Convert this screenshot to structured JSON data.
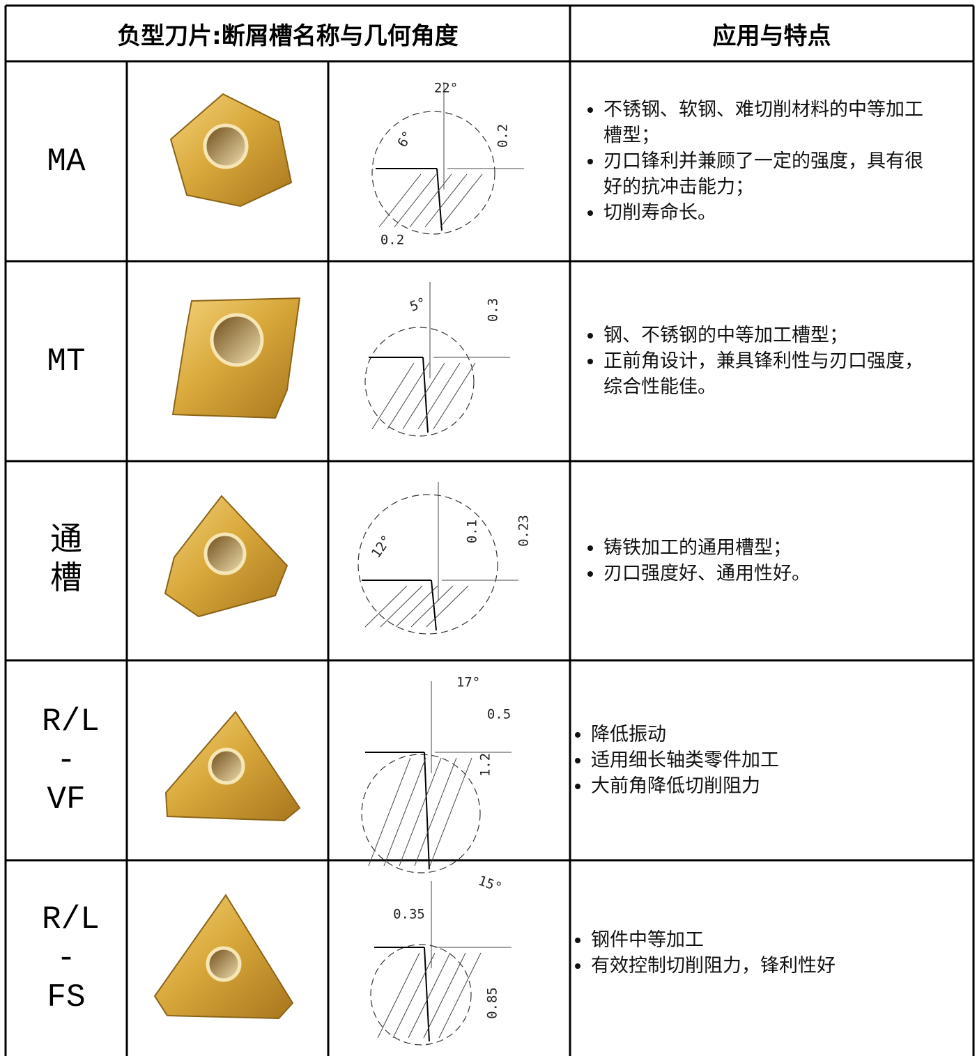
{
  "header": {
    "col1": "负型刀片:断屑槽名称与几何角度",
    "col2": "应用与特点"
  },
  "rows": [
    {
      "name": "MA",
      "drawing_labels": [
        "22°",
        "6°",
        "0.2",
        "0.2"
      ],
      "features": [
        "不锈钢、软钢、难切削材料的中等加工槽型；",
        "刃口锋利并兼顾了一定的强度，具有很好的抗冲击能力；",
        "切削寿命长。"
      ]
    },
    {
      "name": "MT",
      "drawing_labels": [
        "5°",
        "0.3"
      ],
      "features": [
        "钢、不锈钢的中等加工槽型；",
        "正前角设计，兼具锋利性与刃口强度，综合性能佳。"
      ]
    },
    {
      "name": "通槽",
      "drawing_labels": [
        "12°",
        "0.1",
        "0.23"
      ],
      "features": [
        "铸铁加工的通用槽型；",
        "刃口强度好、通用性好。"
      ]
    },
    {
      "name": "R/L -VF",
      "drawing_labels": [
        "17°",
        "0.5",
        "1.2"
      ],
      "features": [
        "降低振动",
        "适用细长轴类零件加工",
        "大前角降低切削阻力"
      ]
    },
    {
      "name": "R/L -FS",
      "drawing_labels": [
        "15°",
        "0.35",
        "0.85"
      ],
      "features": [
        "钢件中等加工",
        "有效控制切削阻力，锋利性好"
      ]
    }
  ]
}
